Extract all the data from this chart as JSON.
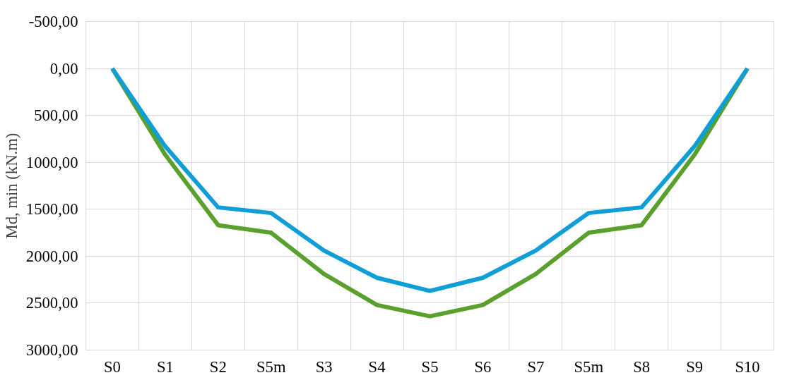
{
  "chart_data": {
    "type": "line",
    "ylabel": "Md, min (kN.m)",
    "categories": [
      "S0",
      "S1",
      "S2",
      "S5m",
      "S3",
      "S4",
      "S5",
      "S6",
      "S7",
      "S5m",
      "S8",
      "S9",
      "S10"
    ],
    "series": [
      {
        "color": "#5aa02c",
        "values": [
          0,
          920,
          1670,
          1750,
          2190,
          2520,
          2640,
          2520,
          2190,
          1750,
          1670,
          920,
          0
        ]
      },
      {
        "color": "#0f9ed5",
        "values": [
          0,
          830,
          1480,
          1540,
          1940,
          2230,
          2370,
          2230,
          1940,
          1540,
          1480,
          830,
          0
        ]
      }
    ],
    "ylim": [
      3000,
      -500
    ],
    "yticks": [
      {
        "value": -500,
        "label": "-500,00"
      },
      {
        "value": 0,
        "label": "0,00"
      },
      {
        "value": 500,
        "label": "500,00"
      },
      {
        "value": 1000,
        "label": "1000,00"
      },
      {
        "value": 1500,
        "label": "1500,00"
      },
      {
        "value": 2000,
        "label": "2000,00"
      },
      {
        "value": 2500,
        "label": "2500,00"
      },
      {
        "value": 3000,
        "label": "3000,00"
      }
    ],
    "grid": true,
    "line_style": "solid",
    "marker": "none"
  }
}
